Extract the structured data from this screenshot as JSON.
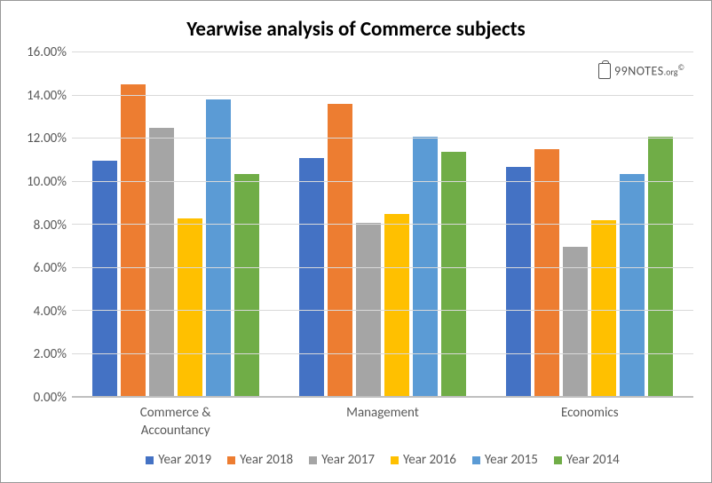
{
  "chart": {
    "type": "bar",
    "title": "Yearwise analysis of Commerce subjects",
    "title_fontsize": 23,
    "axis_fontsize": 15,
    "legend_fontsize": 15,
    "background_color": "#ffffff",
    "grid_color": "#d9d9d9",
    "axis_text_color": "#595959",
    "categories": [
      "Commerce & Accountancy",
      "Management",
      "Economics"
    ],
    "series": [
      {
        "name": "Year 2019",
        "color": "#4472c4",
        "values": [
          10.95,
          11.1,
          10.7
        ]
      },
      {
        "name": "Year 2018",
        "color": "#ed7d31",
        "values": [
          14.5,
          13.6,
          11.5
        ]
      },
      {
        "name": "Year 2017",
        "color": "#a5a5a5",
        "values": [
          12.5,
          8.1,
          6.95
        ]
      },
      {
        "name": "Year 2016",
        "color": "#ffc000",
        "values": [
          8.3,
          8.5,
          8.2
        ]
      },
      {
        "name": "Year 2015",
        "color": "#5b9bd5",
        "values": [
          13.8,
          12.1,
          10.35
        ]
      },
      {
        "name": "Year 2014",
        "color": "#70ad47",
        "values": [
          10.35,
          11.4,
          12.1
        ]
      }
    ],
    "ylim": [
      0,
      16
    ],
    "ytick_step": 2,
    "y_format": "percent2"
  },
  "watermark": {
    "brand": "99NOTES",
    "suffix": ".org",
    "copyright": "©"
  }
}
